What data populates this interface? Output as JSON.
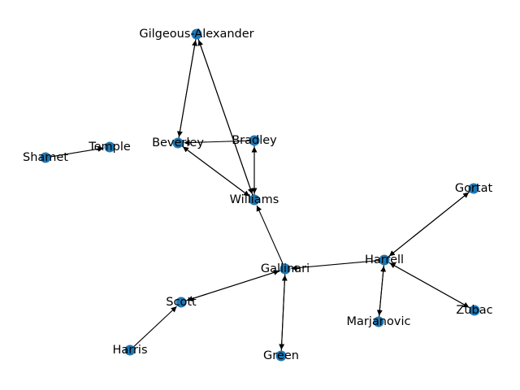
{
  "colors": {
    "node": "#1f77b4",
    "edge": "#000000",
    "background": "#ffffff"
  },
  "nodes": [
    {
      "id": "Gilgeous-Alexander",
      "label": "Gilgeous-Alexander"
    },
    {
      "id": "Shamet",
      "label": "Shamet"
    },
    {
      "id": "Temple",
      "label": "Temple"
    },
    {
      "id": "Beverley",
      "label": "Beverley"
    },
    {
      "id": "Bradley",
      "label": "Bradley"
    },
    {
      "id": "Williams",
      "label": "Williams"
    },
    {
      "id": "Gortat",
      "label": "Gortat"
    },
    {
      "id": "Harrell",
      "label": "Harrell"
    },
    {
      "id": "Gallinari",
      "label": "Gallinari"
    },
    {
      "id": "Scott",
      "label": "Scott"
    },
    {
      "id": "Zubac",
      "label": "Zubac"
    },
    {
      "id": "Marjanovic",
      "label": "Marjanovic"
    },
    {
      "id": "Harris",
      "label": "Harris"
    },
    {
      "id": "Green",
      "label": "Green"
    }
  ],
  "edges": [
    {
      "from": "Shamet",
      "to": "Temple"
    },
    {
      "from": "Bradley",
      "to": "Beverley"
    },
    {
      "from": "Beverley",
      "to": "Gilgeous-Alexander"
    },
    {
      "from": "Gilgeous-Alexander",
      "to": "Beverley"
    },
    {
      "from": "Gilgeous-Alexander",
      "to": "Williams"
    },
    {
      "from": "Williams",
      "to": "Gilgeous-Alexander"
    },
    {
      "from": "Williams",
      "to": "Beverley"
    },
    {
      "from": "Beverley",
      "to": "Williams"
    },
    {
      "from": "Bradley",
      "to": "Williams"
    },
    {
      "from": "Williams",
      "to": "Bradley"
    },
    {
      "from": "Gallinari",
      "to": "Williams"
    },
    {
      "from": "Harrell",
      "to": "Gallinari"
    },
    {
      "from": "Gallinari",
      "to": "Scott"
    },
    {
      "from": "Scott",
      "to": "Gallinari"
    },
    {
      "from": "Gallinari",
      "to": "Green"
    },
    {
      "from": "Green",
      "to": "Gallinari"
    },
    {
      "from": "Harris",
      "to": "Scott"
    },
    {
      "from": "Gortat",
      "to": "Harrell"
    },
    {
      "from": "Harrell",
      "to": "Gortat"
    },
    {
      "from": "Zubac",
      "to": "Harrell"
    },
    {
      "from": "Harrell",
      "to": "Zubac"
    },
    {
      "from": "Harrell",
      "to": "Marjanovic"
    },
    {
      "from": "Marjanovic",
      "to": "Harrell"
    }
  ]
}
